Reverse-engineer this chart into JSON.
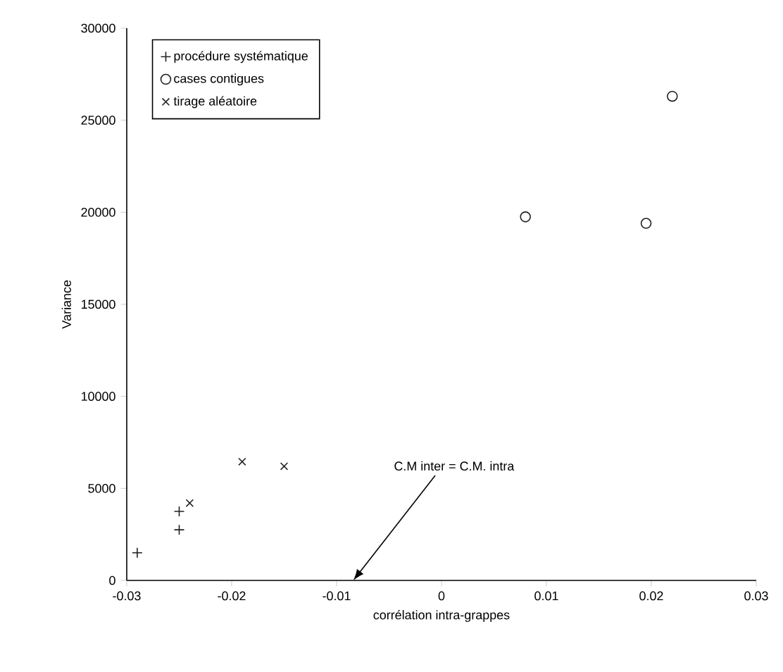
{
  "chart_data": {
    "type": "scatter",
    "xlabel": "corrélation intra-grappes",
    "ylabel": "Variance",
    "xlim": [
      -0.03,
      0.03
    ],
    "xticks": [
      -0.03,
      -0.02,
      -0.01,
      0,
      0.01,
      0.02,
      0.03
    ],
    "ylim": [
      0,
      30000
    ],
    "yticks": [
      0,
      5000,
      10000,
      15000,
      20000,
      25000,
      30000
    ],
    "legend": "top left",
    "grid": false,
    "series": [
      {
        "name": "procédure systématique",
        "color": "#222222",
        "marker": "plus",
        "x": [
          -0.029,
          -0.025,
          -0.025
        ],
        "values": [
          1500,
          2750,
          3750
        ]
      },
      {
        "name": "cases contigues",
        "color": "#222222",
        "marker": "circle",
        "x": [
          0.008,
          0.0195,
          0.022
        ],
        "values": [
          19750,
          19400,
          26300
        ]
      },
      {
        "name": "tirage aléatoire",
        "color": "#222222",
        "marker": "cross",
        "x": [
          -0.024,
          -0.019,
          -0.015
        ],
        "values": [
          4200,
          6450,
          6200
        ]
      }
    ],
    "annotations": [
      "C.M inter = C.M. intra"
    ]
  }
}
